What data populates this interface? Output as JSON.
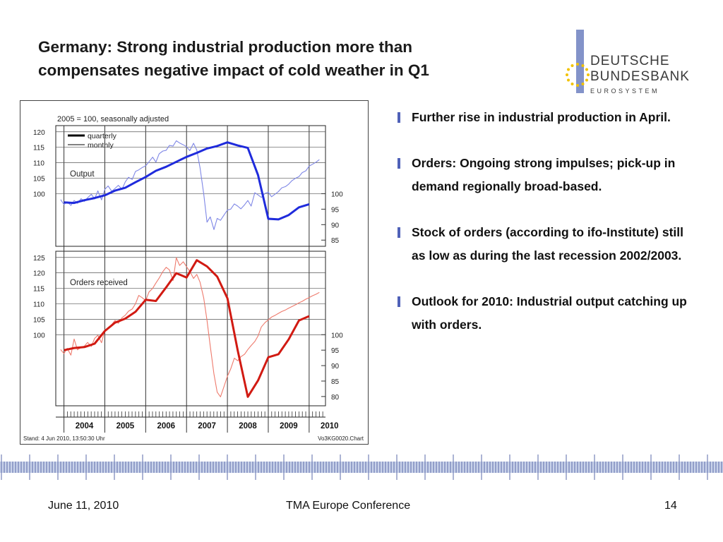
{
  "slide": {
    "title_line1": "Germany: Strong industrial production more than",
    "title_line2": "compensates negative impact of cold weather in Q1"
  },
  "logo": {
    "line1": "DEUTSCHE",
    "line2": "BUNDESBANK",
    "line3": "EUROSYSTEM",
    "bar_color": "#8393c9",
    "star_color": "#f2c200"
  },
  "bullets": [
    "Further rise in industrial production in April.",
    "Orders: Ongoing strong impulses; pick-up in demand regionally broad-based.",
    "Stock of orders (according to ifo-Institute) still as low as during the last recession 2002/2003.",
    "Outlook for 2010: Industrial output catching up with orders."
  ],
  "footer": {
    "date": "June 11, 2010",
    "conference": "TMA Europe Conference",
    "page": "14"
  },
  "chart_data": {
    "type": "line",
    "subtitle": "2005 = 100, seasonally adjusted",
    "footnote_left": "Stand: 4 Jun 2010, 13:50:30 Uhr",
    "footnote_right": "Vo3KG0020.Chart",
    "legend": {
      "quarterly": "quarterly",
      "monthly": "monthly"
    },
    "x_labels": [
      "2004",
      "2005",
      "2006",
      "2007",
      "2008",
      "2009",
      "2010"
    ],
    "x_range": [
      2003.8,
      2010.4
    ],
    "panels": [
      {
        "label": "Output",
        "color": "#1f2bdc",
        "monthly_color": "#7f87e6",
        "left_ticks": [
          100,
          105,
          110,
          115,
          120
        ],
        "right_ticks": [
          85,
          90,
          95,
          100
        ],
        "ylim": [
          83,
          122
        ],
        "quarterly": {
          "x": [
            2004.0,
            2004.25,
            2004.5,
            2004.75,
            2005.0,
            2005.25,
            2005.5,
            2005.75,
            2006.0,
            2006.25,
            2006.5,
            2006.75,
            2007.0,
            2007.25,
            2007.5,
            2007.75,
            2008.0,
            2008.25,
            2008.5,
            2008.75,
            2009.0,
            2009.25,
            2009.5,
            2009.75,
            2010.0
          ],
          "y": [
            97.2,
            97.0,
            97.9,
            98.6,
            99.5,
            101.0,
            101.9,
            103.7,
            105.4,
            107.4,
            108.7,
            110.3,
            111.9,
            113.2,
            114.6,
            115.4,
            116.6,
            115.6,
            114.8,
            106.0,
            91.9,
            91.7,
            93.1,
            95.6,
            96.6
          ]
        },
        "monthly": {
          "x": [
            2003.92,
            2004.0,
            2004.08,
            2004.17,
            2004.25,
            2004.33,
            2004.42,
            2004.5,
            2004.58,
            2004.67,
            2004.75,
            2004.83,
            2004.92,
            2005.0,
            2005.08,
            2005.17,
            2005.25,
            2005.33,
            2005.42,
            2005.5,
            2005.58,
            2005.67,
            2005.75,
            2005.83,
            2005.92,
            2006.0,
            2006.08,
            2006.17,
            2006.25,
            2006.33,
            2006.42,
            2006.5,
            2006.58,
            2006.67,
            2006.75,
            2006.83,
            2006.92,
            2007.0,
            2007.08,
            2007.17,
            2007.25,
            2007.33,
            2007.42,
            2007.5,
            2007.58,
            2007.67,
            2007.75,
            2007.83,
            2007.92,
            2008.0,
            2008.08,
            2008.17,
            2008.25,
            2008.33,
            2008.42,
            2008.5,
            2008.58,
            2008.67,
            2008.75,
            2008.83,
            2008.92,
            2009.0,
            2009.08,
            2009.17,
            2009.25,
            2009.33,
            2009.42,
            2009.5,
            2009.58,
            2009.67,
            2009.75,
            2009.83,
            2009.92,
            2010.0,
            2010.08,
            2010.17,
            2010.25
          ],
          "y": [
            98.1,
            96.5,
            97.4,
            96.2,
            97.8,
            96.9,
            98.4,
            97.5,
            98.7,
            99.8,
            98.3,
            100.9,
            98.0,
            101.4,
            102.5,
            100.8,
            101.7,
            102.7,
            101.4,
            103.8,
            105.3,
            104.6,
            107.2,
            107.7,
            108.5,
            109.0,
            110.3,
            111.8,
            110.2,
            112.9,
            113.8,
            114.0,
            115.6,
            115.4,
            117.1,
            116.4,
            115.8,
            115.2,
            113.9,
            116.3,
            114.1,
            108.4,
            100.0,
            90.8,
            92.5,
            88.4,
            92.0,
            91.4,
            93.2,
            94.7,
            95.0,
            96.7,
            96.0,
            95.1,
            96.4,
            97.8,
            96.0,
            100.3,
            99.6,
            98.8,
            100.1,
            100.5,
            99.0,
            99.9,
            100.7,
            101.9,
            102.3,
            103.1,
            104.2,
            105.0,
            105.5,
            106.8,
            107.4,
            108.9,
            109.5,
            110.2,
            111.0
          ],
          "note": ""
        }
      },
      {
        "label": "Orders received",
        "color": "#d11a12",
        "monthly_color": "#ee7a6c",
        "left_ticks": [
          100,
          105,
          110,
          115,
          120,
          125
        ],
        "right_ticks": [
          80,
          85,
          90,
          95,
          100
        ],
        "ylim": [
          77,
          127
        ],
        "quarterly": {
          "x": [
            2004.0,
            2004.25,
            2004.5,
            2004.75,
            2005.0,
            2005.25,
            2005.5,
            2005.75,
            2006.0,
            2006.25,
            2006.5,
            2006.75,
            2007.0,
            2007.25,
            2007.5,
            2007.75,
            2008.0,
            2008.25,
            2008.5,
            2008.75,
            2009.0,
            2009.25,
            2009.5,
            2009.75,
            2010.0
          ],
          "y": [
            95.0,
            95.7,
            96.0,
            97.1,
            101.2,
            103.9,
            105.2,
            107.4,
            111.3,
            110.9,
            115.3,
            119.9,
            118.5,
            124.1,
            122.1,
            118.8,
            111.8,
            95.0,
            79.9,
            85.2,
            92.7,
            93.7,
            98.5,
            104.6,
            106.0
          ]
        },
        "monthly": {
          "x": [
            2003.92,
            2004.0,
            2004.08,
            2004.17,
            2004.25,
            2004.33,
            2004.42,
            2004.5,
            2004.58,
            2004.67,
            2004.75,
            2004.83,
            2004.92,
            2005.0,
            2005.08,
            2005.17,
            2005.25,
            2005.33,
            2005.42,
            2005.5,
            2005.58,
            2005.67,
            2005.75,
            2005.83,
            2005.92,
            2006.0,
            2006.08,
            2006.17,
            2006.25,
            2006.33,
            2006.42,
            2006.5,
            2006.58,
            2006.67,
            2006.75,
            2006.83,
            2006.92,
            2007.0,
            2007.08,
            2007.17,
            2007.25,
            2007.33,
            2007.42,
            2007.5,
            2007.58,
            2007.67,
            2007.75,
            2007.83,
            2007.92,
            2008.0,
            2008.08,
            2008.17,
            2008.25,
            2008.33,
            2008.42,
            2008.5,
            2008.58,
            2008.67,
            2008.75,
            2008.83,
            2008.92,
            2009.0,
            2009.08,
            2009.17,
            2009.25,
            2009.33,
            2009.42,
            2009.5,
            2009.58,
            2009.67,
            2009.75,
            2009.83,
            2009.92,
            2010.0,
            2010.08,
            2010.17,
            2010.25
          ],
          "y": [
            95.2,
            93.9,
            95.6,
            93.4,
            98.6,
            95.1,
            95.9,
            96.3,
            97.5,
            96.2,
            98.8,
            99.8,
            97.4,
            101.4,
            101.9,
            103.3,
            104.6,
            103.7,
            105.5,
            106.3,
            107.6,
            108.3,
            110.0,
            112.7,
            111.9,
            111.0,
            113.8,
            115.0,
            116.7,
            118.3,
            120.4,
            121.8,
            121.0,
            117.5,
            124.9,
            122.4,
            123.6,
            122.0,
            120.5,
            118.2,
            119.5,
            117.0,
            111.9,
            104.6,
            96.3,
            87.3,
            81.4,
            79.9,
            83.4,
            86.6,
            88.9,
            92.4,
            91.6,
            92.9,
            93.7,
            95.2,
            96.5,
            97.8,
            99.6,
            102.5,
            103.9,
            104.8,
            105.7,
            106.3,
            106.9,
            107.5,
            108.0,
            108.6,
            109.1,
            109.7,
            110.3,
            110.8,
            111.5,
            112.0,
            112.6,
            113.1,
            113.7
          ],
          "note": ""
        }
      }
    ]
  }
}
